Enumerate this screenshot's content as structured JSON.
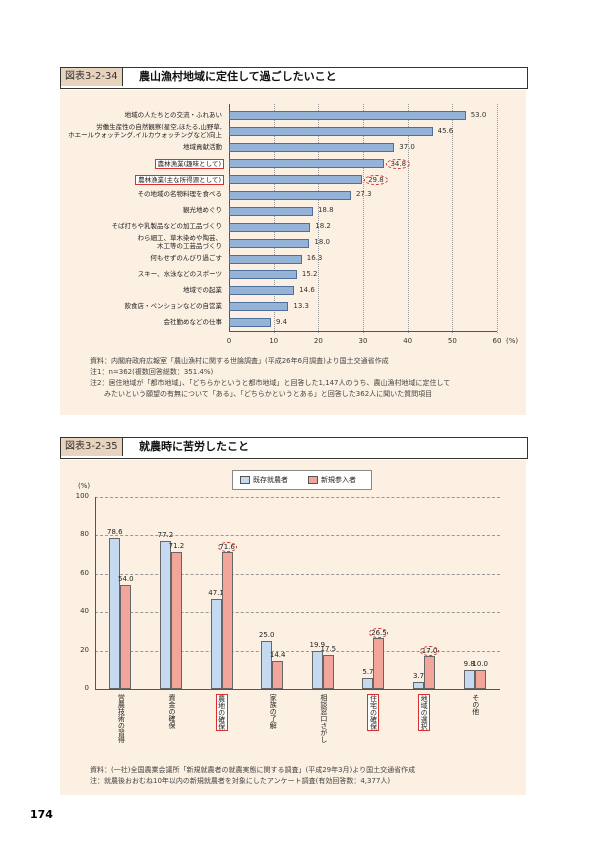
{
  "chart_data": [
    {
      "type": "bar",
      "orientation": "horizontal",
      "figure_label": "図表3-2-34",
      "title": "農山漁村地域に定住して過ごしたいこと",
      "categories": [
        "地域の人たちとの交流・ふれあい",
        "労働生産性の自然観察(星空,ほたる,山野草,\nホエールウォッチング,イルカウォッチングなど)向上",
        "地域貢献活動",
        "農林漁業(趣味として)",
        "農林漁業(主な所得源として)",
        "その地域の名物料理を食べる",
        "観光地めぐり",
        "そば打ちや乳製品などの加工品づくり",
        "わら細工、草木染めや陶芸、\n木工等の工芸品づくり",
        "何もせずのんびり過ごす",
        "スキー、水泳などのスポーツ",
        "地域での起業",
        "飲食店・ペンションなどの自営業",
        "会社勤めなどの仕事"
      ],
      "values": [
        53.0,
        45.6,
        37.0,
        34.8,
        29.8,
        27.3,
        18.8,
        18.2,
        18.0,
        16.3,
        15.2,
        14.6,
        13.3,
        9.4
      ],
      "value_labels": [
        "53.0",
        "45.6",
        "37.0",
        "34.8",
        "29.8",
        "27.3",
        "18.8",
        "18.2",
        "18.0",
        "16.3",
        "15.2",
        "14.6",
        "13.3",
        "9.4"
      ],
      "color": "#95b3d7",
      "highlighted": [
        3,
        4
      ],
      "xlim": [
        0,
        60
      ],
      "xticks": [
        0,
        10,
        20,
        30,
        40,
        50,
        60
      ],
      "x_unit": "(%)",
      "grid": true,
      "notes": [
        "資料：内閣府政府広報室「農山漁村に関する世論調査」(平成26年6月調査)より国土交通省作成",
        "注1：n=362(複数回答総数：351.4%)",
        "注2：居住地域が「都市地域」、「どちらかというと都市地域」と回答した1,147人のうち、農山漁村地域に定住して\n　　みたいという願望の有無について「ある」、「どちらかというとある」と回答した362人に聞いた質問項目"
      ]
    },
    {
      "type": "grouped_bar",
      "figure_label": "図表3-2-35",
      "title": "就農時に苦労したこと",
      "categories": [
        "営農技術の習得",
        "資金の確保",
        "農地の確保",
        "家族の了解",
        "相談窓口さがし",
        "住宅の確保",
        "地域の選択",
        "その他"
      ],
      "series": [
        {
          "name": "既存就農者",
          "color": "#c5d9f1",
          "values": [
            78.6,
            77.2,
            47.1,
            25.0,
            19.9,
            5.7,
            3.7,
            9.8
          ],
          "value_labels": [
            "78.6",
            "77.2",
            "47.1",
            "25.0",
            "19.9",
            "5.7",
            "3.7",
            "9.8"
          ]
        },
        {
          "name": "新規参入者",
          "color": "#f2a59a",
          "values": [
            54.0,
            71.2,
            71.6,
            14.4,
            17.5,
            26.5,
            17.0,
            10.0
          ],
          "value_labels": [
            "54.0",
            "71.2",
            "71.6",
            "14.4",
            "17.5",
            "26.5",
            "17.0",
            "10.0"
          ]
        }
      ],
      "highlighted": [
        2,
        5,
        6
      ],
      "ylim": [
        0,
        100
      ],
      "yticks": [
        0,
        20,
        40,
        60,
        80,
        100
      ],
      "y_unit": "(%)",
      "grid": true,
      "notes": [
        "資料：(一社)全国農業会議所「新規就農者の就農実態に関する調査」(平成29年3月)より国土交通省作成",
        "注：就農後おおむね10年以内の新規就農者を対象にしたアンケート調査(有効回答数：4,377人)"
      ]
    }
  ],
  "page_number": "174"
}
